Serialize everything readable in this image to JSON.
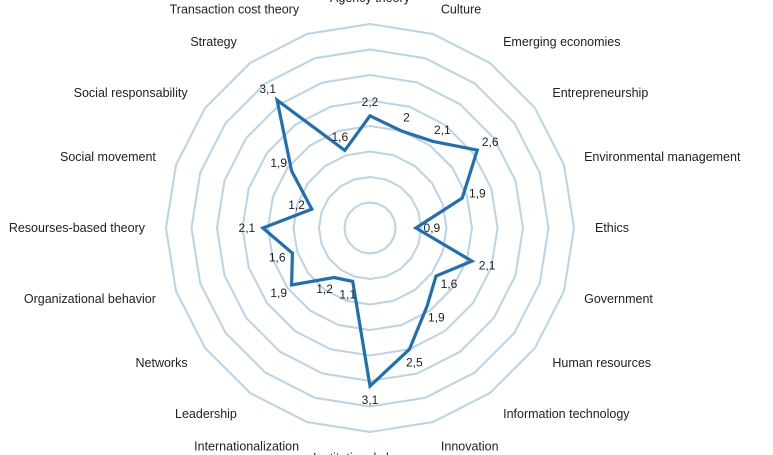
{
  "chart_data": {
    "type": "radar",
    "title": "",
    "categories": [
      "Agency theory",
      "Culture",
      "Emerging economies",
      "Entrepreneurship",
      "Environmental management",
      "Ethics",
      "Government",
      "Human resources",
      "Information technology",
      "Innovation",
      "Institutional changes",
      "Internationalization",
      "Leadership",
      "Networks",
      "Organizational behavior",
      "Resourses-based theory",
      "Social movement",
      "Social responsability",
      "Strategy",
      "Transaction cost theory"
    ],
    "values": [
      2.2,
      2,
      2.1,
      2.6,
      1.9,
      0.9,
      2.1,
      1.6,
      1.9,
      2.5,
      3.1,
      1.1,
      1.2,
      1.9,
      1.6,
      2.1,
      1.2,
      1.9,
      3.1,
      1.6
    ],
    "value_labels": [
      "2,2",
      "2",
      "2,1",
      "2,6",
      "1,9",
      "0,9",
      "2,1",
      "1,6",
      "1,9",
      "2,5",
      "3,1",
      "1,1",
      "1,2",
      "1,9",
      "1,6",
      "2,1",
      "1,2",
      "1,9",
      "3,1",
      "1,6"
    ],
    "rlim": [
      0,
      4
    ],
    "ring_step": 0.5,
    "grid": true,
    "legend": "none",
    "colors": {
      "series": "#1f6fb2",
      "grid": "#b9d3e8"
    }
  }
}
